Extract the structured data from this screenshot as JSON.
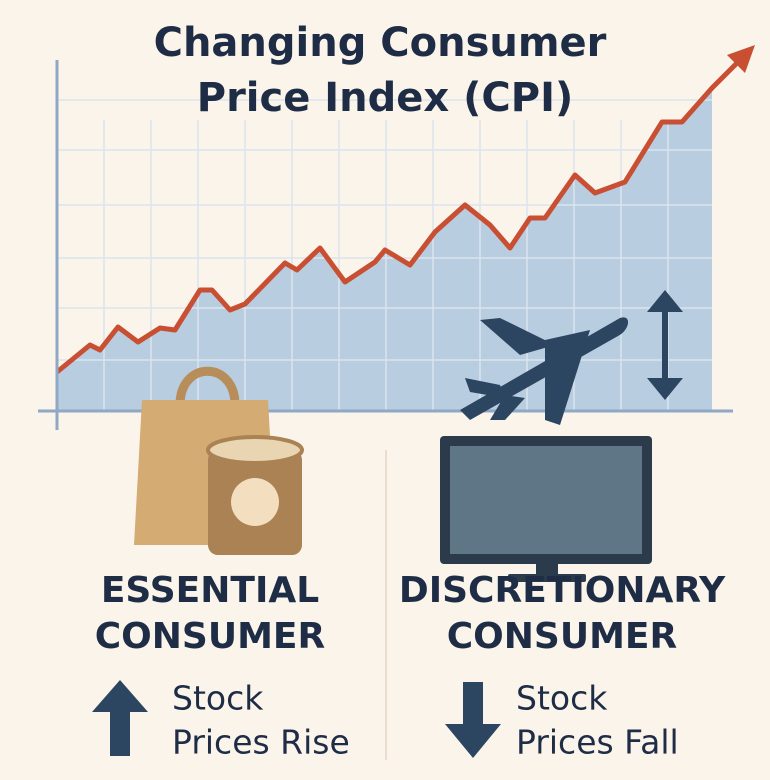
{
  "title": {
    "lines": [
      "Changing Consumer",
      "Price Index (CPI)"
    ]
  },
  "panels": [
    {
      "heading": [
        "ESSENTIAL",
        "CONSUMER"
      ],
      "note": [
        "Stock",
        "Prices Rise"
      ]
    },
    {
      "heading": [
        "DISCRETIONARY",
        "CONSUMER"
      ],
      "note": [
        "Stock",
        "Prices Fall"
      ]
    }
  ]
}
